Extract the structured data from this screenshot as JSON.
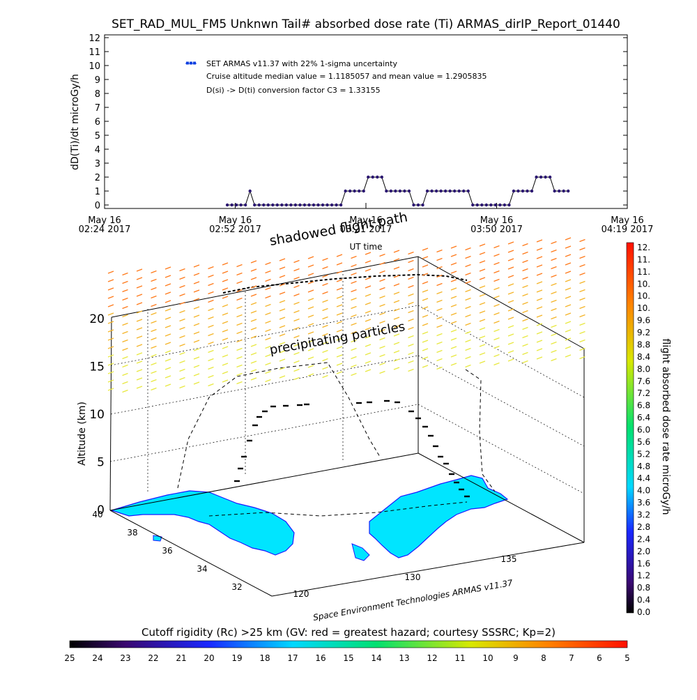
{
  "title": "SET_RAD_MUL_FM5 Unknwn Tail#  absorbed dose rate (Ti) ARMAS_dirIP_Report_01440",
  "chart_data": [
    {
      "type": "line",
      "ylabel": "dD(Ti)/dt microGy/h",
      "xlabel": "UT time",
      "ylim": [
        0,
        12
      ],
      "yticks": [
        "0",
        "1",
        "2",
        "3",
        "4",
        "5",
        "6",
        "7",
        "8",
        "9",
        "10",
        "11",
        "12"
      ],
      "xticks": [
        {
          "line1": "May 16",
          "line2": "02:24 2017"
        },
        {
          "line1": "May 16",
          "line2": "02:52 2017"
        },
        {
          "line1": "May 16",
          "line2": "03:21 2017"
        },
        {
          "line1": "May 16",
          "line2": "03:50 2017"
        },
        {
          "line1": "May 16",
          "line2": "04:19 2017"
        }
      ],
      "x_minutes_range": [
        0,
        115
      ],
      "legend": {
        "series_name": "SET ARMAS v11.37 with 22% 1-sigma uncertainty",
        "line2": "Cruise altitude median value = 1.1185057 and mean value = 1.2905835",
        "line3": "D(si) -> D(ti) conversion factor C3 = 1.33155",
        "position": "top-left"
      },
      "series": [
        {
          "name": "SET ARMAS v11.37 with 22% 1-sigma uncertainty",
          "x": [
            27,
            28,
            29,
            30,
            31,
            32,
            33,
            34,
            35,
            36,
            37,
            38,
            39,
            40,
            41,
            42,
            43,
            44,
            45,
            46,
            47,
            48,
            49,
            50,
            51,
            52,
            53,
            54,
            55,
            56,
            57,
            58,
            59,
            60,
            61,
            62,
            63,
            64,
            65,
            66,
            67,
            68,
            69,
            70,
            71,
            72,
            73,
            74,
            75,
            76,
            77,
            78,
            79,
            80,
            81,
            82,
            83,
            84,
            85,
            86,
            87,
            88,
            89,
            90,
            91,
            92,
            93,
            94,
            95,
            96,
            97,
            98,
            99,
            100,
            101,
            102
          ],
          "y": [
            0,
            0,
            0,
            0,
            0,
            1,
            0,
            0,
            0,
            0,
            0,
            0,
            0,
            0,
            0,
            0,
            0,
            0,
            0,
            0,
            0,
            0,
            0,
            0,
            0,
            0,
            1,
            1,
            1,
            1,
            1,
            2,
            2,
            2,
            2,
            1,
            1,
            1,
            1,
            1,
            1,
            0,
            0,
            0,
            1,
            1,
            1,
            1,
            1,
            1,
            1,
            1,
            1,
            1,
            0,
            0,
            0,
            0,
            0,
            0,
            0,
            0,
            0,
            1,
            1,
            1,
            1,
            1,
            2,
            2,
            2,
            2,
            1,
            1,
            1,
            1
          ]
        }
      ]
    },
    {
      "type": "scatter",
      "zlabel": "Altitude (km)",
      "zticks": [
        "0",
        "5",
        "10",
        "15",
        "20"
      ],
      "lat_ticks": [
        "40",
        "38",
        "36",
        "34",
        "32"
      ],
      "lon_ticks": [
        "120",
        "130",
        "135"
      ],
      "annotations": [
        "shadowed flight path",
        "precipitating particles"
      ],
      "credit": "Space Environment Technologies ARMAS v11.37"
    }
  ],
  "colorbar_right": {
    "label": "flight absorbed dose rate microGy/h",
    "ticks": [
      "12.",
      "11.",
      "11.",
      "10.",
      "10.",
      "10.",
      "9.6",
      "9.2",
      "8.8",
      "8.4",
      "8.0",
      "7.6",
      "7.2",
      "6.8",
      "6.4",
      "6.0",
      "5.6",
      "5.2",
      "4.8",
      "4.4",
      "4.0",
      "3.6",
      "3.2",
      "2.8",
      "2.4",
      "2.0",
      "1.6",
      "1.2",
      "0.8",
      "0.4",
      "0.0"
    ]
  },
  "colorbar_bottom": {
    "label": "Cutoff rigidity (Rc) >25 km (GV: red = greatest hazard; courtesy SSSRC; Kp=2)",
    "ticks": [
      "25",
      "24",
      "23",
      "22",
      "21",
      "20",
      "19",
      "18",
      "17",
      "16",
      "15",
      "14",
      "13",
      "12",
      "11",
      "10",
      "9",
      "8",
      "7",
      "6",
      "5"
    ]
  },
  "colors": {
    "marker": "#2a1670",
    "legend_marker": "#1040e0",
    "land": "#00e5ff",
    "coast": "#1a1aff"
  }
}
